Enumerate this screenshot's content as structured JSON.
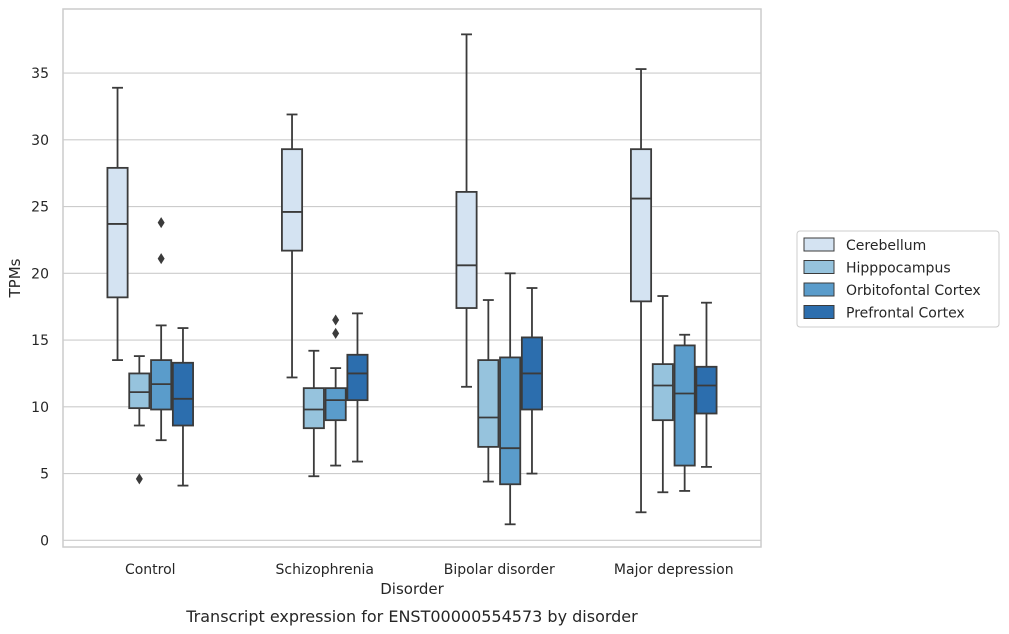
{
  "caption": "Transcript expression for ENST00000554573 by disorder",
  "chart_data": {
    "type": "box",
    "xlabel": "Disorder",
    "ylabel": "TPMs",
    "ylim": [
      -0.5,
      39.8
    ],
    "yticks": [
      0,
      5,
      10,
      15,
      20,
      25,
      30,
      35
    ],
    "grid": "horizontal",
    "legend_position": "right",
    "categories": [
      "Control",
      "Schizophrenia",
      "Bipolar disorder",
      "Major depression"
    ],
    "series": [
      {
        "name": "Cerebellum",
        "color": "#d4e3f2",
        "boxes": [
          {
            "whislo": 13.5,
            "q1": 18.2,
            "median": 23.7,
            "q3": 27.9,
            "whishi": 33.9,
            "fliers": []
          },
          {
            "whislo": 12.2,
            "q1": 21.7,
            "median": 24.6,
            "q3": 29.3,
            "whishi": 31.9,
            "fliers": []
          },
          {
            "whislo": 11.5,
            "q1": 17.4,
            "median": 20.6,
            "q3": 26.1,
            "whishi": 37.9,
            "fliers": []
          },
          {
            "whislo": 2.1,
            "q1": 17.9,
            "median": 25.6,
            "q3": 29.3,
            "whishi": 35.3,
            "fliers": []
          }
        ]
      },
      {
        "name": "Hipppocampus",
        "color": "#96c3dd",
        "boxes": [
          {
            "whislo": 8.6,
            "q1": 9.9,
            "median": 11.1,
            "q3": 12.5,
            "whishi": 13.8,
            "fliers": [
              4.6
            ]
          },
          {
            "whislo": 4.8,
            "q1": 8.4,
            "median": 9.8,
            "q3": 11.4,
            "whishi": 14.2,
            "fliers": []
          },
          {
            "whislo": 4.4,
            "q1": 7.0,
            "median": 9.2,
            "q3": 13.5,
            "whishi": 18.0,
            "fliers": []
          },
          {
            "whislo": 3.6,
            "q1": 9.0,
            "median": 11.6,
            "q3": 13.2,
            "whishi": 18.3,
            "fliers": []
          }
        ]
      },
      {
        "name": "Orbitofontal Cortex",
        "color": "#5a9ccb",
        "boxes": [
          {
            "whislo": 7.5,
            "q1": 9.8,
            "median": 11.7,
            "q3": 13.5,
            "whishi": 16.1,
            "fliers": [
              21.1,
              23.8
            ]
          },
          {
            "whislo": 5.6,
            "q1": 9.0,
            "median": 10.5,
            "q3": 11.4,
            "whishi": 12.9,
            "fliers": [
              15.5,
              16.5
            ]
          },
          {
            "whislo": 1.2,
            "q1": 4.2,
            "median": 6.9,
            "q3": 13.7,
            "whishi": 20.0,
            "fliers": []
          },
          {
            "whislo": 3.7,
            "q1": 5.6,
            "median": 11.0,
            "q3": 14.6,
            "whishi": 15.4,
            "fliers": []
          }
        ]
      },
      {
        "name": "Prefrontal Cortex",
        "color": "#2c6eae",
        "boxes": [
          {
            "whislo": 4.1,
            "q1": 8.6,
            "median": 10.6,
            "q3": 13.3,
            "whishi": 15.9,
            "fliers": []
          },
          {
            "whislo": 5.9,
            "q1": 10.5,
            "median": 12.5,
            "q3": 13.9,
            "whishi": 17.0,
            "fliers": []
          },
          {
            "whislo": 5.0,
            "q1": 9.8,
            "median": 12.5,
            "q3": 15.2,
            "whishi": 18.9,
            "fliers": []
          },
          {
            "whislo": 5.5,
            "q1": 9.5,
            "median": 11.6,
            "q3": 13.0,
            "whishi": 17.8,
            "fliers": []
          }
        ]
      }
    ]
  }
}
